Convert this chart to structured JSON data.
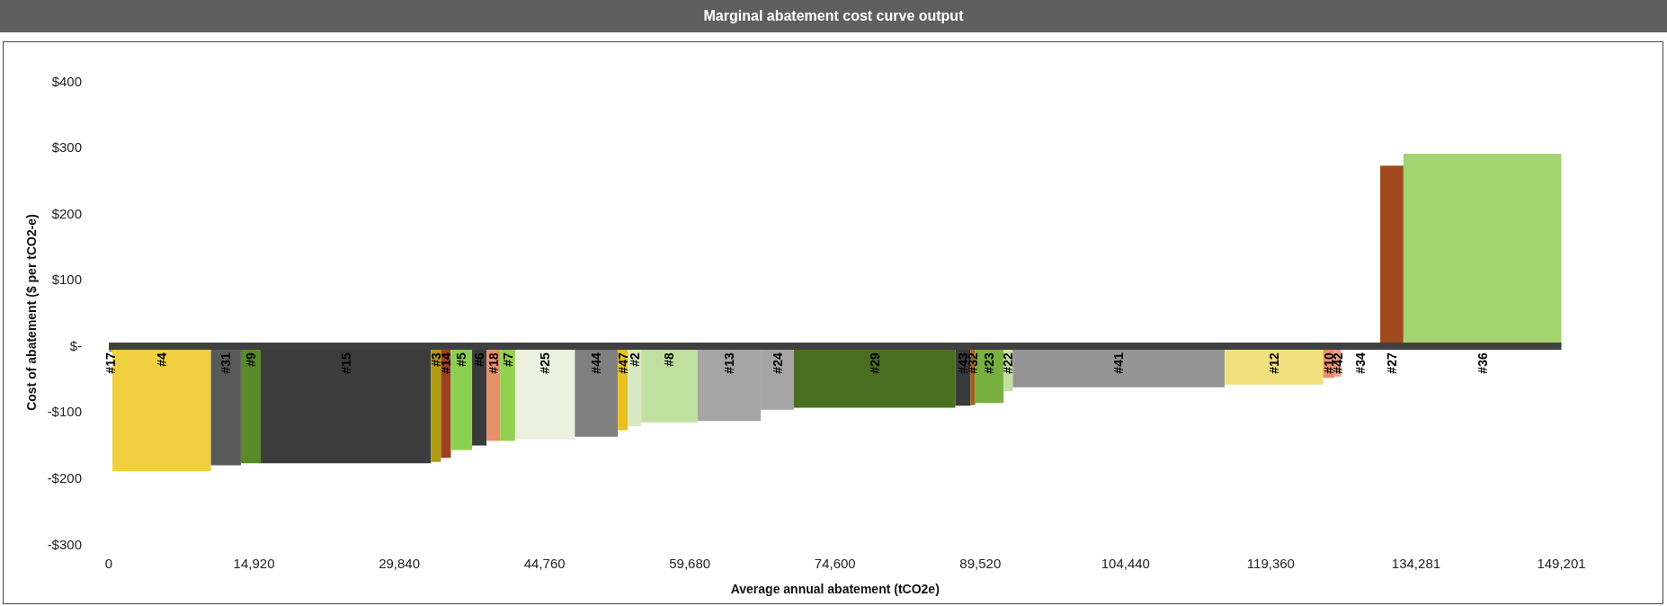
{
  "chart_data": {
    "type": "bar",
    "title": "Marginal abatement cost curve output",
    "xlabel": "Average annual abatement (tCO2e)",
    "ylabel": "Cost of abatement ($ per tCO2-e)",
    "x": [
      185,
      5431,
      12030,
      14589,
      24351,
      33606,
      34626,
      36224,
      38057,
      39493,
      40962,
      44804,
      50078,
      52798,
      54003,
      57582,
      63719,
      68670,
      78663,
      87733,
      88754,
      90453,
      92383,
      103734,
      119671,
      125300,
      126224,
      128588,
      131789,
      141091
    ],
    "values": [
      -10,
      -190,
      -181,
      -178,
      -178,
      -176,
      -170,
      -158,
      -151,
      -144,
      -144,
      -142,
      -138,
      -128,
      -122,
      -116,
      -114,
      -97,
      -94,
      -91,
      -90,
      -87,
      -69,
      -63,
      -59,
      -49,
      -47,
      0,
      272,
      290
    ],
    "colors": [
      "#8fbf4f",
      "#f0d040",
      "#595959",
      "#5a8a2a",
      "#3c3c3c",
      "#b09a10",
      "#9c4020",
      "#8cd050",
      "#3a3a3a",
      "#e8906a",
      "#92d050",
      "#ebf1de",
      "#7f7f7f",
      "#e8c020",
      "#d8e8c0",
      "#c0e0a0",
      "#a5a5a5",
      "#a5a5a5",
      "#4a6e20",
      "#3a3a3a",
      "#a0601a",
      "#78b040",
      "#c4e0a0",
      "#959595",
      "#f2e07e",
      "#e8906a",
      "#e8a080",
      "#cccccc",
      "#a04a1e",
      "#a4d46e"
    ],
    "annotations": [
      {
        "text": "#17",
        "x": 185,
        "y": 0
      },
      {
        "text": "#4",
        "x": 5431,
        "y": 0
      },
      {
        "text": "#31",
        "x": 12030,
        "y": 0
      },
      {
        "text": "#9",
        "x": 14589,
        "y": 0
      },
      {
        "text": "#15",
        "x": 24351,
        "y": 0
      },
      {
        "text": "#3",
        "x": 33606,
        "y": 0
      },
      {
        "text": "#14",
        "x": 34626,
        "y": 0
      },
      {
        "text": "#5",
        "x": 36224,
        "y": 0
      },
      {
        "text": "#6",
        "x": 38057,
        "y": 0
      },
      {
        "text": "#18",
        "x": 39493,
        "y": 0
      },
      {
        "text": "#7",
        "x": 40962,
        "y": 0
      },
      {
        "text": "#25",
        "x": 44804,
        "y": 0
      },
      {
        "text": "#44",
        "x": 50078,
        "y": 0
      },
      {
        "text": "#47",
        "x": 52798,
        "y": 0
      },
      {
        "text": "#2",
        "x": 54003,
        "y": 0
      },
      {
        "text": "#8",
        "x": 57582,
        "y": 0
      },
      {
        "text": "#13",
        "x": 63719,
        "y": 0
      },
      {
        "text": "#24",
        "x": 68670,
        "y": 0
      },
      {
        "text": "#29",
        "x": 78663,
        "y": 0
      },
      {
        "text": "#43",
        "x": 87733,
        "y": 0
      },
      {
        "text": "#32",
        "x": 88754,
        "y": 0
      },
      {
        "text": "#23",
        "x": 90453,
        "y": 0
      },
      {
        "text": "#22",
        "x": 92383,
        "y": 0
      },
      {
        "text": "#41",
        "x": 103734,
        "y": 0
      },
      {
        "text": "#12",
        "x": 119671,
        "y": 0
      },
      {
        "text": "#10",
        "x": 125300,
        "y": 0
      },
      {
        "text": "#42",
        "x": 126224,
        "y": 0
      },
      {
        "text": "#34",
        "x": 128588,
        "y": 0
      },
      {
        "text": "#27",
        "x": 131789,
        "y": 0
      },
      {
        "text": "#36",
        "x": 141091,
        "y": 0
      }
    ],
    "ref_lines": [
      {
        "axis": "y",
        "value": 0,
        "label": null,
        "color": "#404040"
      }
    ],
    "xlim": [
      0,
      149201
    ],
    "xticks": [
      0,
      {
        "value": 14920,
        "label": "14,920"
      },
      {
        "value": 29840,
        "label": "29,840"
      },
      {
        "value": 44760,
        "label": "44,760"
      },
      {
        "value": 59680,
        "label": "59,680"
      },
      {
        "value": 74600,
        "label": "74,600"
      },
      {
        "value": 89520,
        "label": "89,520"
      },
      {
        "value": 104440,
        "label": "104,440"
      },
      {
        "value": 119360,
        "label": "119,360"
      },
      {
        "value": 134281,
        "label": "134,281"
      },
      {
        "value": 149201,
        "label": "149,201"
      }
    ],
    "ylim": [
      -300,
      400
    ],
    "yticks": [
      {
        "value": -300,
        "label": "-$300"
      },
      {
        "value": -200,
        "label": "-$200"
      },
      {
        "value": -100,
        "label": "-$100"
      },
      {
        "value": 0,
        "label": "$-"
      },
      {
        "value": 100,
        "label": "$100"
      },
      {
        "value": 200,
        "label": "$200"
      },
      {
        "value": 300,
        "label": "$300"
      },
      {
        "value": 400,
        "label": "$400"
      }
    ],
    "grid": false
  }
}
